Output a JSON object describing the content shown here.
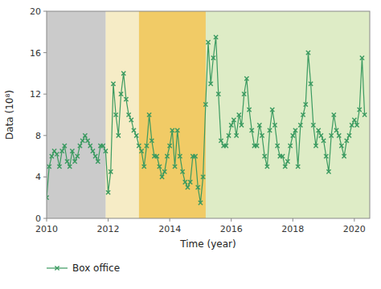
{
  "chart_data": {
    "type": "line",
    "xlabel": "Time (year)",
    "ylabel": "Data (10⁸)",
    "xlim": [
      2010,
      2020.5
    ],
    "ylim": [
      0,
      20
    ],
    "xticks": [
      2010,
      2012,
      2014,
      2016,
      2018,
      2020
    ],
    "yticks": [
      0,
      4,
      8,
      12,
      16,
      20
    ],
    "legend": "bottom",
    "regions": [
      {
        "xmin": 2010.0,
        "xmax": 2011.92,
        "color": "#a8a8a8"
      },
      {
        "xmin": 2011.92,
        "xmax": 2013.0,
        "color": "#f0e0a0"
      },
      {
        "xmin": 2013.0,
        "xmax": 2015.17,
        "color": "#e8a800"
      },
      {
        "xmin": 2015.17,
        "xmax": 2020.5,
        "color": "#c8dfa0"
      }
    ],
    "x": [
      2010.0,
      2010.083,
      2010.167,
      2010.25,
      2010.333,
      2010.417,
      2010.5,
      2010.583,
      2010.667,
      2010.75,
      2010.833,
      2010.917,
      2011.0,
      2011.083,
      2011.167,
      2011.25,
      2011.333,
      2011.417,
      2011.5,
      2011.583,
      2011.667,
      2011.75,
      2011.833,
      2011.917,
      2012.0,
      2012.083,
      2012.167,
      2012.25,
      2012.333,
      2012.417,
      2012.5,
      2012.583,
      2012.667,
      2012.75,
      2012.833,
      2012.917,
      2013.0,
      2013.083,
      2013.167,
      2013.25,
      2013.333,
      2013.417,
      2013.5,
      2013.583,
      2013.667,
      2013.75,
      2013.833,
      2013.917,
      2014.0,
      2014.083,
      2014.167,
      2014.25,
      2014.333,
      2014.417,
      2014.5,
      2014.583,
      2014.667,
      2014.75,
      2014.833,
      2014.917,
      2015.0,
      2015.083,
      2015.167,
      2015.25,
      2015.333,
      2015.417,
      2015.5,
      2015.583,
      2015.667,
      2015.75,
      2015.833,
      2015.917,
      2016.0,
      2016.083,
      2016.167,
      2016.25,
      2016.333,
      2016.417,
      2016.5,
      2016.583,
      2016.667,
      2016.75,
      2016.833,
      2016.917,
      2017.0,
      2017.083,
      2017.167,
      2017.25,
      2017.333,
      2017.417,
      2017.5,
      2017.583,
      2017.667,
      2017.75,
      2017.833,
      2017.917,
      2018.0,
      2018.083,
      2018.167,
      2018.25,
      2018.333,
      2018.417,
      2018.5,
      2018.583,
      2018.667,
      2018.75,
      2018.833,
      2018.917,
      2019.0,
      2019.083,
      2019.167,
      2019.25,
      2019.333,
      2019.417,
      2019.5,
      2019.583,
      2019.667,
      2019.75,
      2019.833,
      2019.917,
      2020.0,
      2020.083,
      2020.167,
      2020.25,
      2020.333
    ],
    "series": [
      {
        "name": "Box office",
        "color": "#3a9a60",
        "marker": "x",
        "values": [
          2.0,
          5.0,
          6.0,
          6.5,
          6.2,
          5.0,
          6.5,
          7.0,
          5.5,
          5.0,
          6.5,
          5.5,
          6.0,
          7.0,
          7.5,
          8.0,
          7.5,
          7.0,
          6.5,
          6.0,
          5.5,
          7.0,
          7.0,
          6.5,
          2.5,
          4.5,
          13.0,
          10.0,
          8.0,
          12.0,
          14.0,
          11.5,
          10.0,
          9.5,
          8.5,
          8.0,
          7.0,
          6.5,
          5.0,
          7.0,
          10.0,
          7.5,
          6.0,
          6.0,
          5.0,
          4.0,
          4.5,
          6.0,
          7.0,
          8.5,
          5.0,
          8.5,
          6.0,
          4.5,
          3.5,
          3.0,
          3.5,
          6.0,
          6.0,
          3.0,
          1.5,
          4.0,
          11.0,
          17.0,
          13.0,
          15.5,
          17.5,
          12.0,
          7.5,
          7.0,
          7.0,
          8.0,
          9.0,
          9.5,
          8.0,
          10.0,
          9.0,
          12.0,
          13.5,
          10.5,
          8.5,
          7.0,
          7.0,
          9.0,
          8.0,
          6.0,
          5.0,
          8.5,
          10.5,
          9.0,
          7.0,
          6.0,
          6.0,
          5.0,
          5.5,
          7.0,
          8.0,
          8.5,
          5.0,
          9.0,
          10.0,
          11.0,
          16.0,
          13.0,
          9.0,
          7.0,
          8.5,
          8.0,
          7.5,
          6.0,
          4.5,
          8.0,
          10.0,
          8.5,
          8.0,
          7.0,
          6.0,
          7.5,
          8.0,
          9.0,
          9.5,
          9.0,
          10.5,
          15.5,
          10.0
        ]
      }
    ]
  }
}
